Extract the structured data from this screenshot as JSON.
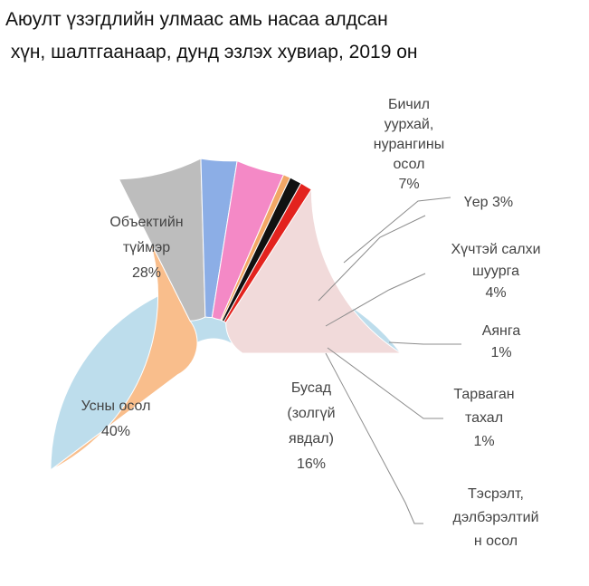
{
  "title_lines": [
    "Аюулт үзэгдлийн улмаас амь насаа алдсан",
    " хүн, шалтгаанаар, дунд эзлэх хувиар, 2019 он"
  ],
  "chart_data": {
    "type": "pie",
    "donut": true,
    "title": "Аюулт үзэгдлийн улмаас амь насаа алдсан хүн, шалтгаанаар, дунд эзлэх хувиар, 2019 он",
    "legend": "none",
    "slices": [
      {
        "name": "Ус",
        "value": 40,
        "label_lines": [
          "Усны осол",
          "40%"
        ],
        "color": "#BDDDEC"
      },
      {
        "name": "Объект",
        "value": 28,
        "label_lines": [
          "Объектийн",
          "түймэр",
          "28%"
        ],
        "color": "#F9BE8C"
      },
      {
        "name": "Бичил",
        "value": 7,
        "label_lines": [
          "Бичил",
          "уурхай,",
          "нурангины",
          "осол",
          "7%"
        ],
        "color": "#BDBDBD"
      },
      {
        "name": "Үер",
        "value": 3,
        "label_lines": [
          "Үер 3%"
        ],
        "color": "#8CAEE6"
      },
      {
        "name": "Хүчтэй",
        "value": 4,
        "label_lines": [
          "Хүчтэй салхи",
          "шуурга",
          "4%"
        ],
        "color": "#F489C6"
      },
      {
        "name": "Тэсрэлт",
        "value": 0.6,
        "label_lines": [
          "Тэсрэлт,",
          "дэлбэрэлтий",
          "н осол"
        ],
        "color": "#F2A766"
      },
      {
        "name": "Аянга",
        "value": 1,
        "label_lines": [
          "Аянга",
          "1%"
        ],
        "color": "#111111"
      },
      {
        "name": "Тарваган",
        "value": 1,
        "label_lines": [
          "Тарваган",
          "тахал",
          "1%"
        ],
        "color": "#E3231E"
      },
      {
        "name": "Бусад",
        "value": 16,
        "label_lines": [
          "Бусад",
          "(золгүй",
          "явдал)",
          "16%"
        ],
        "color": "#F1DADA"
      }
    ]
  }
}
